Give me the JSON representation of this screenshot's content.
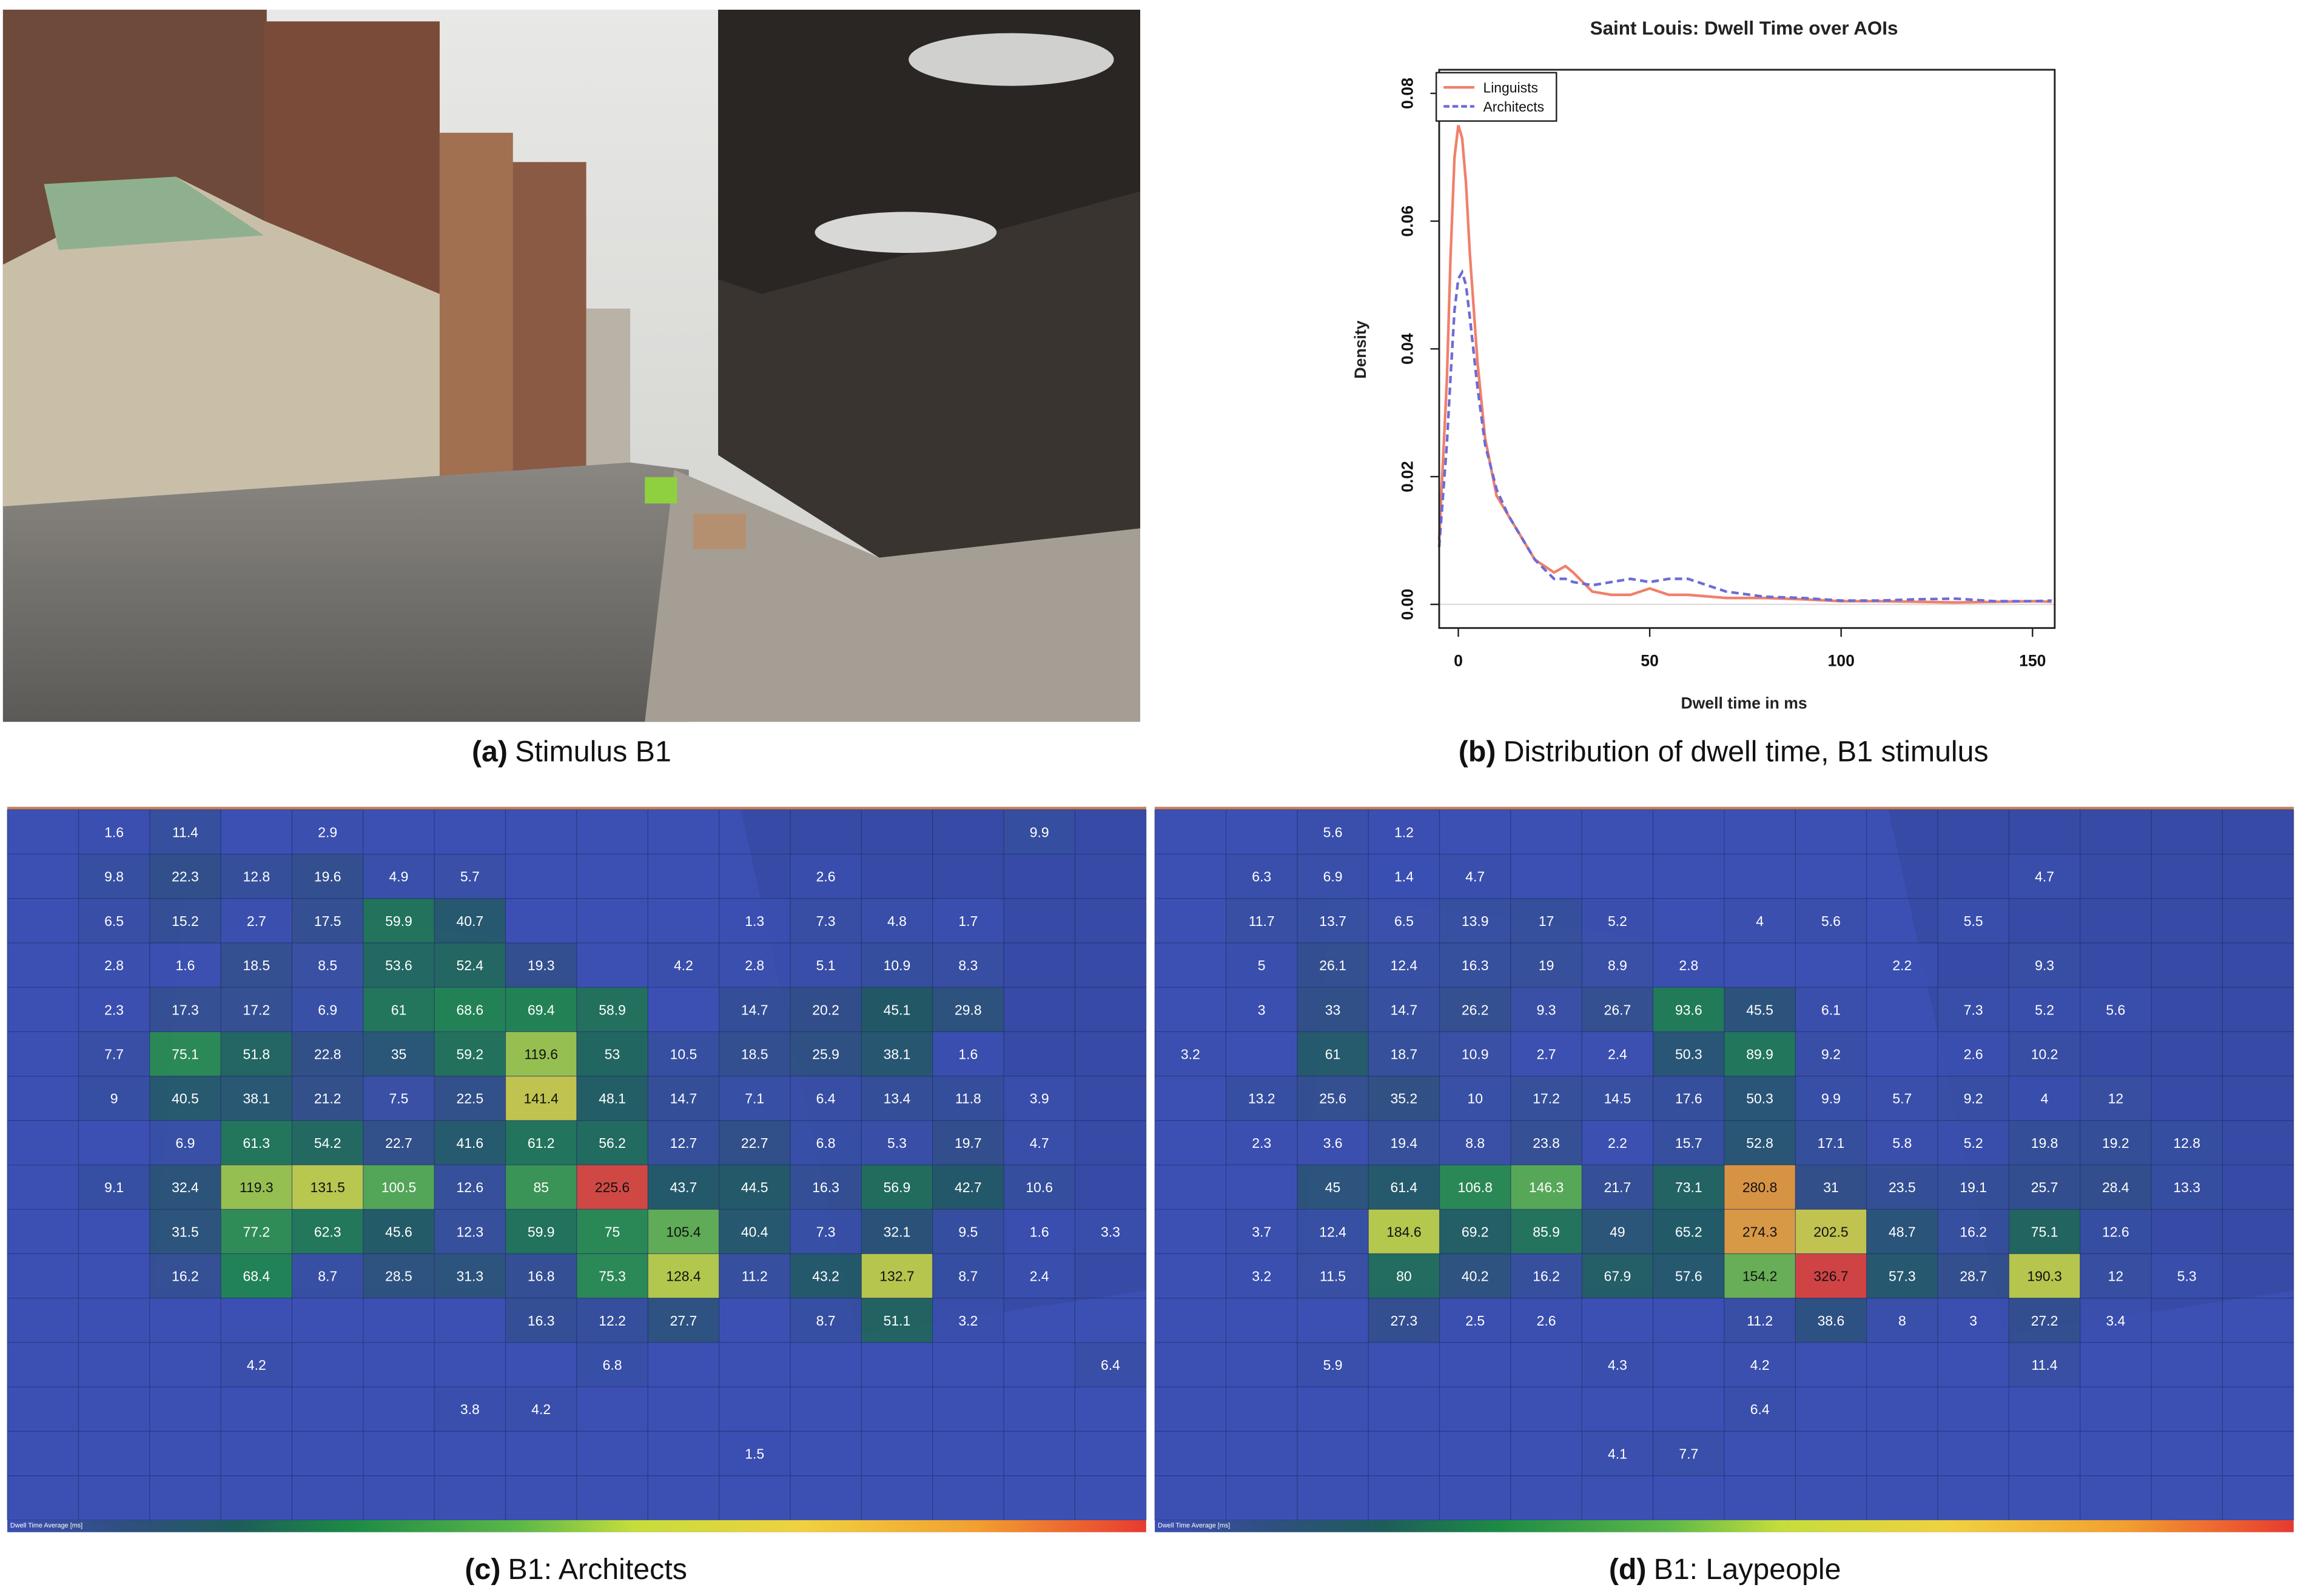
{
  "stimulus": {
    "caption": {
      "label": "(a)",
      "text": "Stimulus B1"
    }
  },
  "chart_data": [
    {
      "type": "line",
      "title": "Saint Louis: Dwell Time over AOIs",
      "xlabel": "Dwell time in ms",
      "ylabel": "Density",
      "x": [
        -5,
        -3,
        -2,
        -1,
        0,
        1,
        2,
        3,
        5,
        7,
        10,
        13,
        17,
        20,
        25,
        28,
        30,
        35,
        40,
        45,
        50,
        55,
        60,
        70,
        80,
        90,
        100,
        110,
        120,
        130,
        140,
        150,
        155
      ],
      "series": [
        {
          "name": "Linguists",
          "color": "#f0806a",
          "dashed": false,
          "values": [
            0.01,
            0.035,
            0.055,
            0.07,
            0.075,
            0.073,
            0.066,
            0.055,
            0.038,
            0.026,
            0.017,
            0.014,
            0.01,
            0.007,
            0.005,
            0.006,
            0.005,
            0.002,
            0.0015,
            0.0015,
            0.0025,
            0.0015,
            0.0015,
            0.001,
            0.001,
            0.0008,
            0.0005,
            0.0005,
            0.0004,
            0.0003,
            0.0004,
            0.0005,
            0.0004
          ]
        },
        {
          "name": "Architects",
          "color": "#6c6cd6",
          "dashed": true,
          "values": [
            0.009,
            0.025,
            0.036,
            0.046,
            0.051,
            0.052,
            0.05,
            0.045,
            0.034,
            0.025,
            0.018,
            0.014,
            0.01,
            0.007,
            0.004,
            0.004,
            0.0035,
            0.003,
            0.0035,
            0.004,
            0.0035,
            0.004,
            0.004,
            0.002,
            0.0012,
            0.001,
            0.0006,
            0.0006,
            0.0008,
            0.0009,
            0.0005,
            0.0005,
            0.0006
          ]
        }
      ],
      "xlim": [
        -5,
        155.8
      ],
      "ylim": [
        -0.0037,
        0.0837
      ],
      "xticks": [
        0,
        50,
        100,
        150
      ],
      "yticks": [
        {
          "value": 0,
          "label": "0.00"
        },
        {
          "value": 0.02,
          "label": "0.02"
        },
        {
          "value": 0.04,
          "label": "0.04"
        },
        {
          "value": 0.06,
          "label": "0.06"
        },
        {
          "value": 0.08,
          "label": "0.08"
        }
      ],
      "legend": "upper left",
      "caption": {
        "label": "(b)",
        "text": "Distribution of dwell time, B1 stimulus"
      }
    },
    {
      "type": "heatmap",
      "colorbar_title": "Dwell Time Average [ms]",
      "vlim": [
        0,
        230
      ],
      "colorscale": [
        [
          0,
          "#3b4fb3"
        ],
        [
          0.1,
          "#2f4f80"
        ],
        [
          0.2,
          "#1e5c5a"
        ],
        [
          0.3,
          "#1c8a45"
        ],
        [
          0.45,
          "#5cb848"
        ],
        [
          0.55,
          "#c5dd3c"
        ],
        [
          0.7,
          "#f0d040"
        ],
        [
          0.85,
          "#f2a030"
        ],
        [
          1,
          "#e83a30"
        ]
      ],
      "values": [
        [
          null,
          1.6,
          11.4,
          null,
          2.9,
          null,
          null,
          null,
          null,
          null,
          null,
          null,
          null,
          null,
          9.9,
          null
        ],
        [
          null,
          9.8,
          22.3,
          12.8,
          19.6,
          4.9,
          5.7,
          null,
          null,
          null,
          null,
          2.6,
          null,
          null,
          null,
          null
        ],
        [
          null,
          6.5,
          15.2,
          2.7,
          17.5,
          59.9,
          40.7,
          null,
          null,
          null,
          1.3,
          7.3,
          4.8,
          1.7,
          null,
          null
        ],
        [
          null,
          2.8,
          1.6,
          18.5,
          8.5,
          53.6,
          52.4,
          19.3,
          null,
          4.2,
          2.8,
          5.1,
          10.9,
          8.3,
          null,
          null
        ],
        [
          null,
          2.3,
          17.3,
          17.2,
          6.9,
          61,
          68.6,
          69.4,
          58.9,
          null,
          14.7,
          20.2,
          45.1,
          29.8,
          null,
          null
        ],
        [
          null,
          7.7,
          75.1,
          51.8,
          22.8,
          35,
          59.2,
          119.6,
          53,
          10.5,
          18.5,
          25.9,
          38.1,
          1.6,
          null,
          null
        ],
        [
          null,
          9,
          40.5,
          38.1,
          21.2,
          7.5,
          22.5,
          141.4,
          48.1,
          14.7,
          7.1,
          6.4,
          13.4,
          11.8,
          3.9,
          null
        ],
        [
          null,
          null,
          6.9,
          61.3,
          54.2,
          22.7,
          41.6,
          61.2,
          56.2,
          12.7,
          22.7,
          6.8,
          5.3,
          19.7,
          4.7,
          null
        ],
        [
          null,
          9.1,
          32.4,
          119.3,
          131.5,
          100.5,
          12.6,
          85,
          225.6,
          43.7,
          44.5,
          16.3,
          56.9,
          42.7,
          10.6,
          null
        ],
        [
          null,
          null,
          31.5,
          77.2,
          62.3,
          45.6,
          12.3,
          59.9,
          75,
          105.4,
          40.4,
          7.3,
          32.1,
          9.5,
          1.6,
          3.3
        ],
        [
          null,
          null,
          16.2,
          68.4,
          8.7,
          28.5,
          31.3,
          16.8,
          75.3,
          128.4,
          11.2,
          43.2,
          132.7,
          8.7,
          2.4,
          null
        ],
        [
          null,
          null,
          null,
          null,
          null,
          null,
          null,
          16.3,
          12.2,
          27.7,
          null,
          8.7,
          51.1,
          3.2,
          null,
          null
        ],
        [
          null,
          null,
          null,
          4.2,
          null,
          null,
          null,
          null,
          6.8,
          null,
          null,
          null,
          null,
          null,
          null,
          6.4
        ],
        [
          null,
          null,
          null,
          null,
          null,
          null,
          3.8,
          4.2,
          null,
          null,
          null,
          null,
          null,
          null,
          null,
          null
        ],
        [
          null,
          null,
          null,
          null,
          null,
          null,
          null,
          null,
          null,
          null,
          1.5,
          null,
          null,
          null,
          null,
          null
        ],
        [
          null,
          null,
          null,
          null,
          null,
          null,
          null,
          null,
          null,
          null,
          null,
          null,
          null,
          null,
          null,
          null
        ]
      ],
      "caption": {
        "label": "(c)",
        "text": "B1: Architects"
      }
    },
    {
      "type": "heatmap",
      "colorbar_title": "Dwell Time Average [ms]",
      "vlim": [
        0,
        330
      ],
      "colorscale": [
        [
          0,
          "#3b4fb3"
        ],
        [
          0.1,
          "#2f4f80"
        ],
        [
          0.2,
          "#1e5c5a"
        ],
        [
          0.3,
          "#1c8a45"
        ],
        [
          0.45,
          "#5cb848"
        ],
        [
          0.55,
          "#c5dd3c"
        ],
        [
          0.7,
          "#f0d040"
        ],
        [
          0.85,
          "#f2a030"
        ],
        [
          1,
          "#e83a30"
        ]
      ],
      "values": [
        [
          null,
          null,
          5.6,
          1.2,
          null,
          null,
          null,
          null,
          null,
          null,
          null,
          null,
          null,
          null,
          null,
          null
        ],
        [
          null,
          6.3,
          6.9,
          1.4,
          4.7,
          null,
          null,
          null,
          null,
          null,
          null,
          null,
          4.7,
          null,
          null,
          null
        ],
        [
          null,
          11.7,
          13.7,
          6.5,
          13.9,
          17,
          5.2,
          null,
          4,
          5.6,
          null,
          5.5,
          null,
          null,
          null,
          null
        ],
        [
          null,
          5,
          26.1,
          12.4,
          16.3,
          19,
          8.9,
          2.8,
          null,
          null,
          2.2,
          null,
          9.3,
          null,
          null,
          null
        ],
        [
          null,
          3,
          33,
          14.7,
          26.2,
          9.3,
          26.7,
          93.6,
          45.5,
          6.1,
          null,
          7.3,
          5.2,
          5.6,
          null,
          null
        ],
        [
          3.2,
          null,
          61,
          18.7,
          10.9,
          2.7,
          2.4,
          50.3,
          89.9,
          9.2,
          null,
          2.6,
          10.2,
          null,
          null,
          null
        ],
        [
          null,
          13.2,
          25.6,
          35.2,
          10,
          17.2,
          14.5,
          17.6,
          50.3,
          9.9,
          5.7,
          9.2,
          4,
          12,
          null,
          null
        ],
        [
          null,
          2.3,
          3.6,
          19.4,
          8.8,
          23.8,
          2.2,
          15.7,
          52.8,
          17.1,
          5.8,
          5.2,
          19.8,
          19.2,
          12.8,
          null
        ],
        [
          null,
          null,
          45,
          61.4,
          106.8,
          146.3,
          21.7,
          73.1,
          280.8,
          31,
          23.5,
          19.1,
          25.7,
          28.4,
          13.3,
          null
        ],
        [
          null,
          3.7,
          12.4,
          184.6,
          69.2,
          85.9,
          49,
          65.2,
          274.3,
          202.5,
          48.7,
          16.2,
          75.1,
          12.6,
          null,
          null
        ],
        [
          null,
          3.2,
          11.5,
          80,
          40.2,
          16.2,
          67.9,
          57.6,
          154.2,
          326.7,
          57.3,
          28.7,
          190.3,
          12,
          5.3,
          null
        ],
        [
          null,
          null,
          null,
          27.3,
          2.5,
          2.6,
          null,
          null,
          11.2,
          38.6,
          8,
          3,
          27.2,
          3.4,
          null,
          null
        ],
        [
          null,
          null,
          5.9,
          null,
          null,
          null,
          4.3,
          null,
          4.2,
          null,
          null,
          null,
          11.4,
          null,
          null,
          null
        ],
        [
          null,
          null,
          null,
          null,
          null,
          null,
          null,
          null,
          6.4,
          null,
          null,
          null,
          null,
          null,
          null,
          null
        ],
        [
          null,
          null,
          null,
          null,
          null,
          null,
          4.1,
          7.7,
          null,
          null,
          null,
          null,
          null,
          null,
          null,
          null
        ],
        [
          null,
          null,
          null,
          null,
          null,
          null,
          null,
          null,
          null,
          null,
          null,
          null,
          null,
          null,
          null,
          null
        ]
      ],
      "caption": {
        "label": "(d)",
        "text": "B1: Laypeople"
      }
    }
  ]
}
